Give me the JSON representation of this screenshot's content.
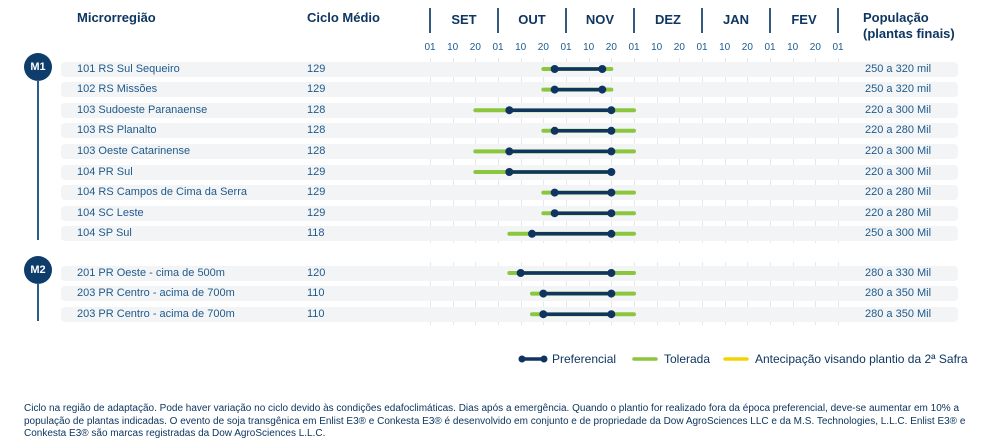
{
  "header": {
    "region": "Microrregião",
    "cycle": "Ciclo Médio",
    "population": "População",
    "population_sub": "(plantas finais)"
  },
  "groups": [
    {
      "label": "M1"
    },
    {
      "label": "M2"
    }
  ],
  "chart_data": {
    "type": "gantt",
    "months": [
      "SET",
      "OUT",
      "NOV",
      "DEZ",
      "JAN",
      "FEV"
    ],
    "ticks": [
      "01",
      "10",
      "20",
      "01",
      "10",
      "20",
      "01",
      "10",
      "20",
      "01",
      "10",
      "20",
      "01",
      "10",
      "20",
      "01",
      "10",
      "20",
      "01"
    ],
    "units": "tick index from 01 SET (each month = 3 ticks: 01,10,20)",
    "rows": [
      {
        "group": "M1",
        "region": "101 RS Sul Sequeiro",
        "cycle": "129",
        "population": "250 a 320 mil",
        "tolerated": [
          5,
          8
        ],
        "preferred": [
          5.5,
          7.6
        ]
      },
      {
        "group": "M1",
        "region": "102 RS Missões",
        "cycle": "129",
        "population": "250 a 320 mil",
        "tolerated": [
          5,
          8
        ],
        "preferred": [
          5.5,
          7.6
        ]
      },
      {
        "group": "M1",
        "region": "103 Sudoeste Paranaense",
        "cycle": "128",
        "population": "220 a 300 Mil",
        "tolerated": [
          2,
          9
        ],
        "preferred": [
          3.5,
          8
        ]
      },
      {
        "group": "M1",
        "region": "103 RS Planalto",
        "cycle": "128",
        "population": "220 a 280 Mil",
        "tolerated": [
          5,
          9
        ],
        "preferred": [
          5.5,
          8
        ]
      },
      {
        "group": "M1",
        "region": "103 Oeste Catarinense",
        "cycle": "128",
        "population": "220 a 300 Mil",
        "tolerated": [
          2,
          9
        ],
        "preferred": [
          3.5,
          8
        ]
      },
      {
        "group": "M1",
        "region": "104 PR Sul",
        "cycle": "129",
        "population": "220 a 300 Mil",
        "tolerated": [
          2,
          8
        ],
        "preferred": [
          3.5,
          8
        ]
      },
      {
        "group": "M1",
        "region": "104 RS Campos de Cima da Serra",
        "cycle": "129",
        "population": "220 a 280 Mil",
        "tolerated": [
          5,
          9
        ],
        "preferred": [
          5.5,
          8
        ]
      },
      {
        "group": "M1",
        "region": "104 SC Leste",
        "cycle": "129",
        "population": "220 a 280 Mil",
        "tolerated": [
          5,
          9
        ],
        "preferred": [
          5.5,
          8
        ]
      },
      {
        "group": "M1",
        "region": "104 SP Sul",
        "cycle": "118",
        "population": "250 a 300 Mil",
        "tolerated": [
          3.5,
          9
        ],
        "preferred": [
          4.5,
          8
        ]
      },
      {
        "group": "M2",
        "region": "201 PR Oeste - cima de 500m",
        "cycle": "120",
        "population": "280 a 330 Mil",
        "tolerated": [
          3.5,
          9
        ],
        "preferred": [
          4,
          8
        ]
      },
      {
        "group": "M2",
        "region": "203 PR Centro - acima de 700m",
        "cycle": "110",
        "population": "280 a 350 Mil",
        "tolerated": [
          4.5,
          9
        ],
        "preferred": [
          5,
          8
        ]
      },
      {
        "group": "M2",
        "region": "203 PR Centro - acima de 700m",
        "cycle": "110",
        "population": "280 a 350 Mil",
        "tolerated": [
          4.5,
          9
        ],
        "preferred": [
          5,
          8
        ]
      }
    ],
    "legend": [
      {
        "label": "Preferencial",
        "color": "#0f3460"
      },
      {
        "label": "Tolerada",
        "color": "#8cc63f"
      },
      {
        "label": "Antecipação visando plantio da 2ª Safra",
        "color": "#f2d500"
      }
    ]
  },
  "footnote": "Ciclo na região de adaptação. Pode haver variação no ciclo devido às condições edafoclimáticas. Dias após a emergência. Quando o plantio for realizado fora da época preferencial, deve-se aumentar em 10% a população de plantas indicadas. O evento de soja transgênica em Enlist E3® e Conkesta E3® é desenvolvido em conjunto e de propriedade da Dow AgroSciences LLC e da M.S. Technologies, L.L.C. Enlist E3® e Conkesta E3® são marcas registradas da Dow AgroSciences L.L.C."
}
